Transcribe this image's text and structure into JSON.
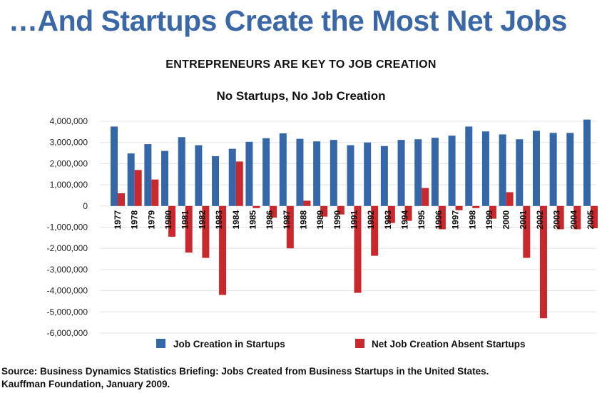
{
  "slide": {
    "title": "…And Startups Create the Most Net Jobs",
    "source_line1": "Source: Business Dynamics Statistics Briefing: Jobs Created from Business Startups in the United States.",
    "source_line2": "Kauffman Foundation, January 2009."
  },
  "colors": {
    "title": "#3b67a6",
    "startups": "#3567a8",
    "absent": "#c9282d"
  },
  "chart_data": {
    "type": "bar",
    "title": "ENTREPRENEURS ARE KEY TO JOB CREATION",
    "subtitle": "No Startups, No Job Creation",
    "categories": [
      "1977",
      "1978",
      "1979",
      "1980",
      "1981",
      "1982",
      "1983",
      "1984",
      "1985",
      "1986",
      "1987",
      "1988",
      "1989",
      "1990",
      "1991",
      "1992",
      "1993",
      "1994",
      "1995",
      "1996",
      "1997",
      "1998",
      "1999",
      "2000",
      "2001",
      "2002",
      "2003",
      "2004",
      "2005"
    ],
    "series": [
      {
        "name": "Job Creation in Startups",
        "values": [
          3750000,
          2480000,
          2920000,
          2600000,
          3250000,
          2870000,
          2350000,
          2700000,
          3030000,
          3200000,
          3430000,
          3170000,
          3050000,
          3120000,
          2870000,
          3000000,
          2830000,
          3120000,
          3150000,
          3220000,
          3320000,
          3750000,
          3520000,
          3380000,
          3150000,
          3550000,
          3450000,
          3450000,
          4080000
        ]
      },
      {
        "name": "Net Job Creation Absent Startups",
        "values": [
          600000,
          1700000,
          1250000,
          -1450000,
          -2200000,
          -2450000,
          -4200000,
          2100000,
          -100000,
          -550000,
          -2000000,
          250000,
          -500000,
          -400000,
          -4100000,
          -2350000,
          -800000,
          -700000,
          850000,
          -1100000,
          -200000,
          -100000,
          -600000,
          650000,
          -2450000,
          -5300000,
          -1100000,
          -1100000,
          -1050000
        ]
      }
    ],
    "ylim": [
      -6000000,
      4000000
    ],
    "yticks": [
      4000000,
      3000000,
      2000000,
      1000000,
      0,
      -1000000,
      -2000000,
      -3000000,
      -4000000,
      -5000000,
      -6000000
    ],
    "ytick_labels": [
      "4,000,000",
      "3,000,000",
      "2,000,000",
      "1,000,000",
      "0",
      "-1,000,000",
      "-2,000,000",
      "-3,000,000",
      "-4,000,000",
      "-5,000,000",
      "-6,000,000"
    ],
    "grid": true,
    "legend_position": "bottom"
  }
}
